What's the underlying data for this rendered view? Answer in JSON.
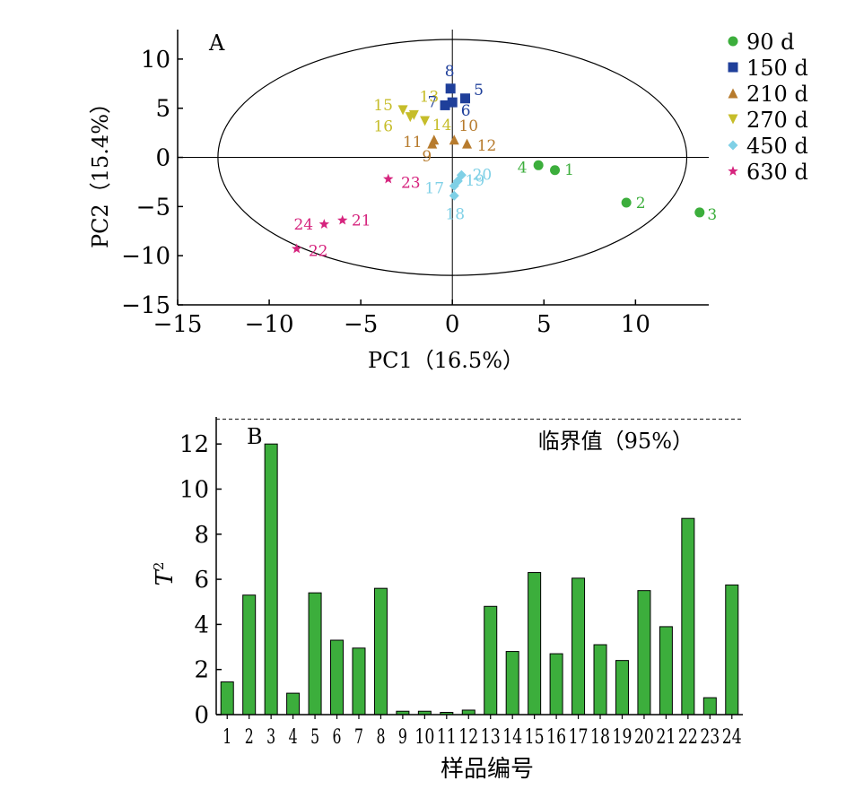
{
  "chart_data": [
    {
      "panel": "A",
      "type": "scatter",
      "xlabel": "PC1（16.5%）",
      "ylabel": "PC2（15.4%）",
      "xlim": [
        -15,
        14
      ],
      "ylim": [
        -15,
        13
      ],
      "xticks": [
        -15,
        -10,
        -5,
        0,
        5,
        10
      ],
      "yticks": [
        -15,
        -10,
        -5,
        0,
        5,
        10
      ],
      "xtick_labels": [
        "−15",
        "−10",
        "−5",
        "0",
        "5",
        "10"
      ],
      "ytick_labels": [
        "−15",
        "−10",
        "−5",
        "0",
        "5",
        "10"
      ],
      "grid": false,
      "legend_position": "right",
      "ellipse": {
        "cx": 0,
        "cy": 0,
        "rx": 12.8,
        "ry": 12
      },
      "series": [
        {
          "name": "90 d",
          "marker": "circle",
          "color": "#3cae3c",
          "label_color": "#3cae3c",
          "points": [
            {
              "label": "1",
              "x": 5.6,
              "y": -1.3
            },
            {
              "label": "2",
              "x": 9.5,
              "y": -4.6
            },
            {
              "label": "3",
              "x": 13.5,
              "y": -5.6
            },
            {
              "label": "4",
              "x": 4.7,
              "y": -0.8
            }
          ]
        },
        {
          "name": "150 d",
          "marker": "square",
          "color": "#1f3f9a",
          "label_color": "#1f3f9a",
          "points": [
            {
              "label": "5",
              "x": 0.7,
              "y": 6.0
            },
            {
              "label": "6",
              "x": 0.0,
              "y": 5.6
            },
            {
              "label": "7",
              "x": -0.4,
              "y": 5.3
            },
            {
              "label": "8",
              "x": -0.1,
              "y": 7.0
            }
          ]
        },
        {
          "name": "210 d",
          "marker": "triangle-up",
          "color": "#b77b2d",
          "label_color": "#b77b2d",
          "points": [
            {
              "label": "9",
              "x": -1.1,
              "y": 1.4
            },
            {
              "label": "10",
              "x": 0.1,
              "y": 1.8
            },
            {
              "label": "11",
              "x": -1.0,
              "y": 1.8
            },
            {
              "label": "12",
              "x": 0.8,
              "y": 1.4
            }
          ]
        },
        {
          "name": "270 d",
          "marker": "triangle-down",
          "color": "#c6bd2a",
          "label_color": "#c6bd2a",
          "points": [
            {
              "label": "13",
              "x": -2.1,
              "y": 4.3
            },
            {
              "label": "14",
              "x": -1.5,
              "y": 3.7
            },
            {
              "label": "15",
              "x": -2.7,
              "y": 4.8
            },
            {
              "label": "16",
              "x": -2.3,
              "y": 4.1
            }
          ]
        },
        {
          "name": "450 d",
          "marker": "diamond",
          "color": "#7fd0e6",
          "label_color": "#7fd0e6",
          "points": [
            {
              "label": "17",
              "x": 0.1,
              "y": -2.9
            },
            {
              "label": "18",
              "x": 0.1,
              "y": -3.9
            },
            {
              "label": "19",
              "x": 0.3,
              "y": -2.4
            },
            {
              "label": "20",
              "x": 0.5,
              "y": -1.8
            }
          ]
        },
        {
          "name": "630 d",
          "marker": "star",
          "color": "#d6247e",
          "label_color": "#d6247e",
          "points": [
            {
              "label": "21",
              "x": -6.0,
              "y": -6.4
            },
            {
              "label": "22",
              "x": -8.5,
              "y": -9.3
            },
            {
              "label": "23",
              "x": -3.5,
              "y": -2.2
            },
            {
              "label": "24",
              "x": -7.0,
              "y": -6.8
            }
          ]
        }
      ]
    },
    {
      "panel": "B",
      "type": "bar",
      "ylabel": "T",
      "ylabel_sup": "2",
      "xlabel": "样品编号",
      "ylim": [
        0,
        13.2
      ],
      "yticks": [
        0,
        2,
        4,
        6,
        8,
        10,
        12
      ],
      "grid": false,
      "bar_color": "#3cae3c",
      "threshold": {
        "label": "临界值（95%）",
        "value": 13.1
      },
      "categories": [
        "1",
        "2",
        "3",
        "4",
        "5",
        "6",
        "7",
        "8",
        "9",
        "10",
        "11",
        "12",
        "13",
        "14",
        "15",
        "16",
        "17",
        "18",
        "19",
        "20",
        "21",
        "22",
        "23",
        "24"
      ],
      "values": [
        1.45,
        5.3,
        12.0,
        0.95,
        5.4,
        3.3,
        2.95,
        5.6,
        0.15,
        0.15,
        0.1,
        0.2,
        4.8,
        2.8,
        6.3,
        2.7,
        6.05,
        3.1,
        2.4,
        5.5,
        3.9,
        8.7,
        0.75,
        5.75
      ]
    }
  ]
}
